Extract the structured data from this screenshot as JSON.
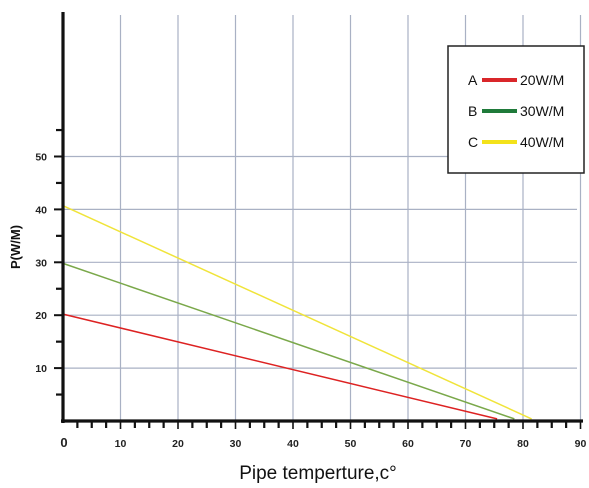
{
  "chart_data": {
    "type": "line",
    "title": "",
    "xlabel": "Pipe temperture,c°",
    "ylabel": "P(W/M)",
    "xlim": [
      0,
      90
    ],
    "ylim": [
      0,
      55
    ],
    "x_ticks": [
      "0",
      "10",
      "20",
      "30",
      "40",
      "50",
      "60",
      "70",
      "80",
      "90"
    ],
    "y_ticks": [
      "10",
      "20",
      "30",
      "40",
      "50"
    ],
    "grid": true,
    "legend_position": "top-right",
    "series": [
      {
        "letter": "A",
        "name": "20W/M",
        "color": "#dd2222",
        "points": [
          [
            0,
            20.2
          ],
          [
            75.5,
            0.4
          ]
        ]
      },
      {
        "letter": "B",
        "name": "30W/M",
        "color": "#7aa84a",
        "points": [
          [
            0,
            29.8
          ],
          [
            78.5,
            0.4
          ]
        ]
      },
      {
        "letter": "C",
        "name": "40W/M",
        "color": "#f0e43a",
        "points": [
          [
            0,
            40.7
          ],
          [
            81.5,
            0.4
          ]
        ]
      }
    ],
    "legend_swatch_colors": [
      "#d9262a",
      "#1f7a3a",
      "#f3e21a"
    ]
  }
}
